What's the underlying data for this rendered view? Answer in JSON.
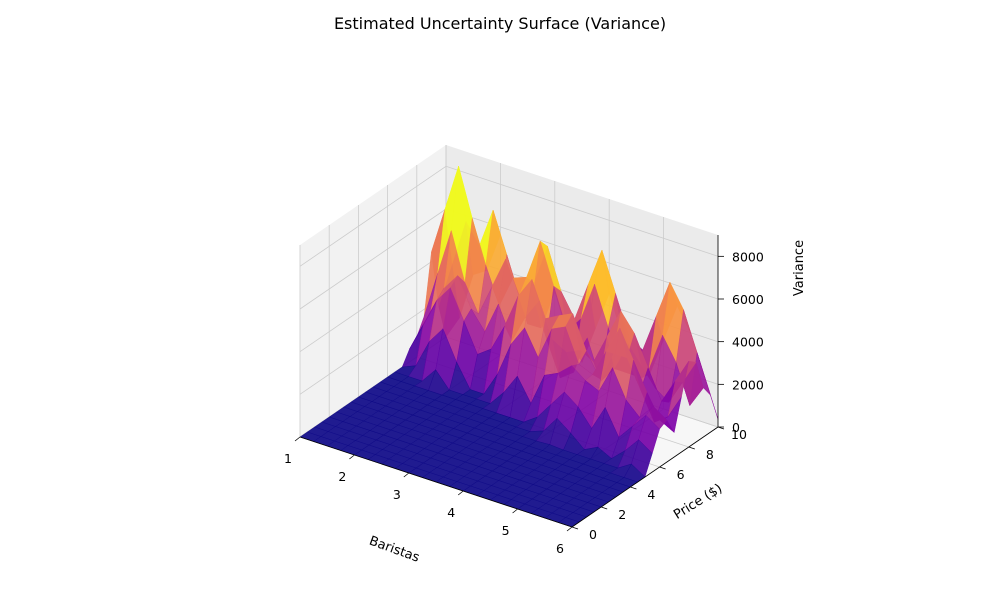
{
  "colors": {
    "pane_left": "#f2f2f2",
    "pane_right": "#ebebeb",
    "pane_floor": "#f7f7f7",
    "grid": "#cccccc",
    "axis_line": "#000000",
    "colormap": "plasma",
    "low": "#0d0887",
    "mid": "#9c179e",
    "high": "#fdca26"
  },
  "chart_data": {
    "type": "surface3d",
    "title": "Estimated Uncertainty Surface (Variance)",
    "xlabel": "Baristas",
    "ylabel": "Price ($)",
    "zlabel": "Variance",
    "xlim": [
      1,
      6
    ],
    "ylim": [
      0,
      10
    ],
    "zlim": [
      0,
      9000
    ],
    "xticks": [
      "1",
      "2",
      "3",
      "4",
      "5",
      "6"
    ],
    "yticks": [
      "0",
      "2",
      "4",
      "6",
      "8",
      "10"
    ],
    "zticks": [
      "0",
      "2000",
      "4000",
      "6000",
      "8000"
    ],
    "grid": true,
    "note": "Surface is near zero for most of the price range and rises into sharp variance spikes between price 6 and 10.",
    "peaks": [
      {
        "x": 1.5,
        "y": 9.0,
        "z": 8900
      },
      {
        "x": 2.0,
        "y": 9.6,
        "z": 7500
      },
      {
        "x": 3.0,
        "y": 9.2,
        "z": 7600
      },
      {
        "x": 4.0,
        "y": 9.4,
        "z": 7300
      },
      {
        "x": 5.3,
        "y": 9.6,
        "z": 7200
      },
      {
        "x": 6.0,
        "y": 8.2,
        "z": 4600
      },
      {
        "x": 4.8,
        "y": 8.0,
        "z": 5600
      },
      {
        "x": 2.5,
        "y": 8.6,
        "z": 6000
      },
      {
        "x": 3.2,
        "y": 7.6,
        "z": 6500
      },
      {
        "x": 3.9,
        "y": 7.3,
        "z": 6200
      },
      {
        "x": 5.0,
        "y": 7.0,
        "z": 5200
      },
      {
        "x": 1.7,
        "y": 7.8,
        "z": 5400
      },
      {
        "x": 4.3,
        "y": 6.5,
        "z": 3200
      },
      {
        "x": 5.8,
        "y": 6.3,
        "z": 2900
      }
    ]
  }
}
